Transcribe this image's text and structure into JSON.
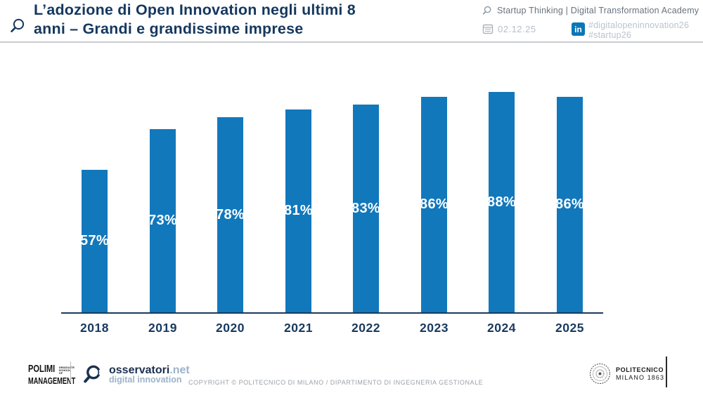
{
  "header": {
    "title_line1": "L’adozione di Open Innovation negli ultimi 8",
    "title_line2": "anni – Grandi e grandissime imprese",
    "program": "Startup Thinking | Digital Transformation Academy",
    "date": "02.12.25",
    "linkedin_glyph": "in",
    "hashtag1": "#digitalopeninnovation26",
    "hashtag2": "#startup26"
  },
  "chart_data": {
    "type": "bar",
    "title": "L’adozione di Open Innovation negli ultimi 8 anni – Grandi e grandissime imprese",
    "categories": [
      "2018",
      "2019",
      "2020",
      "2021",
      "2022",
      "2023",
      "2024",
      "2025"
    ],
    "values": [
      57,
      73,
      78,
      81,
      83,
      86,
      88,
      86
    ],
    "value_labels": [
      "57%",
      "73%",
      "78%",
      "81%",
      "83%",
      "86%",
      "88%",
      "86%"
    ],
    "xlabel": "",
    "ylabel": "",
    "ylim": [
      0,
      100
    ],
    "grid": "off",
    "legend": "none",
    "bar_color": "#1278bc",
    "label_position": "inside-center"
  },
  "footer": {
    "polimi_name": "POLIMI",
    "polimi_sub": "GRADUATE SCHOOL OF",
    "polimi_management": "MANAGEMENT",
    "osservatori_name": "osservatori",
    "osservatori_net": ".net",
    "osservatori_tagline": "digital innovation",
    "copyright": "COPYRIGHT © POLITECNICO DI MILANO / DIPARTIMENTO DI INGEGNERIA GESTIONALE",
    "politecnico_line1": "POLITECNICO",
    "politecnico_line2": "MILANO 1863"
  },
  "colors": {
    "title_navy": "#15385e",
    "bar_blue": "#1278bc",
    "axis_navy": "#1b3a5c",
    "linkedin_blue": "#0b76b7",
    "muted_gray": "#68737f",
    "light_gray": "#b9c3cd"
  }
}
